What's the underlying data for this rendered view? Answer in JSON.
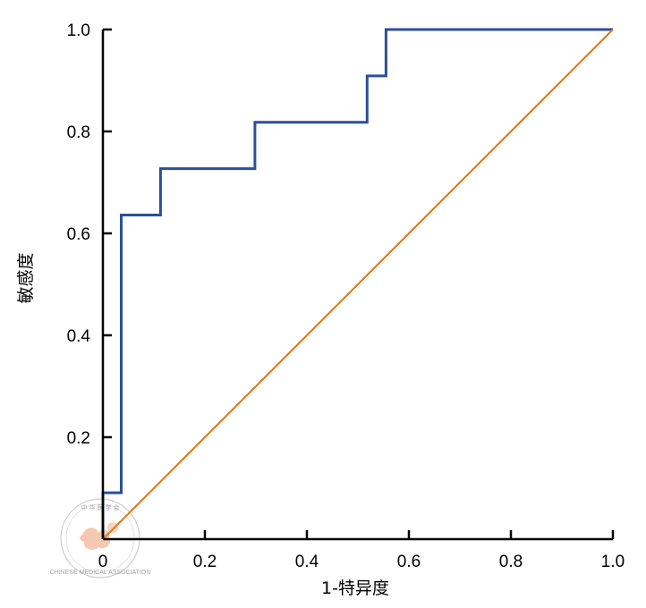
{
  "chart_data": {
    "type": "line",
    "title": "",
    "xlabel": "1-特异度",
    "ylabel": "敏感度",
    "xlim": [
      0,
      1
    ],
    "ylim": [
      0,
      1
    ],
    "x_ticks": [
      "0",
      "0.2",
      "0.4",
      "0.6",
      "0.8",
      "1.0"
    ],
    "y_ticks": [
      "0.2",
      "0.4",
      "0.6",
      "0.8",
      "1.0"
    ],
    "grid": false,
    "series": [
      {
        "name": "",
        "color": "#2b4f9a",
        "step": true,
        "x": [
          0,
          0,
          0.036,
          0.036,
          0.113,
          0.113,
          0.298,
          0.298,
          0.518,
          0.518,
          0.555,
          0.555,
          1.0
        ],
        "y": [
          0,
          0.091,
          0.091,
          0.636,
          0.636,
          0.727,
          0.727,
          0.818,
          0.818,
          0.909,
          0.909,
          1.0,
          1.0
        ]
      },
      {
        "name": "",
        "color": "#e07c25",
        "step": false,
        "x": [
          0,
          1
        ],
        "y": [
          0,
          1
        ]
      }
    ]
  },
  "watermark": {
    "text": "中华医学会 CHINESE MEDICAL ASSOCIATION"
  }
}
